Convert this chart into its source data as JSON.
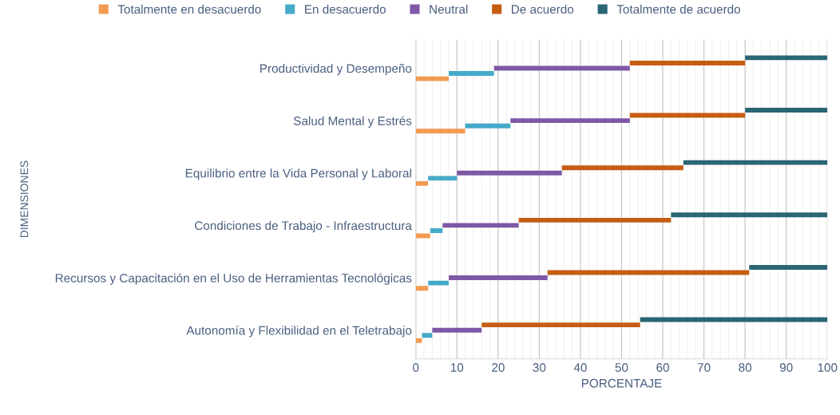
{
  "chart_data": {
    "type": "bar",
    "orientation": "horizontal",
    "stacked": true,
    "xlabel": "PORCENTAJE",
    "ylabel": "DIMENSIONES",
    "categories": [
      "Productividad y Desempeño",
      "Salud Mental y Estrés",
      "Equilibrio entre la Vida Personal y Laboral",
      "Condiciones de Trabajo - Infraestructura",
      "Recursos y Capacitación en el Uso de Herramientas Tecnológicas",
      "Autonomía y Flexibilidad en el Teletrabajo"
    ],
    "series": [
      {
        "name": "Totalmente en desacuerdo",
        "color": "#f29b52",
        "values": [
          8,
          12,
          3,
          3.5,
          3,
          1.5
        ]
      },
      {
        "name": "En desacuerdo",
        "color": "#45aac8",
        "values": [
          11,
          11,
          7,
          3,
          5,
          2.5
        ]
      },
      {
        "name": "Neutral",
        "color": "#7e58a6",
        "values": [
          33,
          29,
          25.5,
          18.5,
          24,
          12
        ]
      },
      {
        "name": "De acuerdo",
        "color": "#c55d13",
        "values": [
          28,
          28,
          29.5,
          37,
          49,
          38.5
        ]
      },
      {
        "name": "Totalmente de acuerdo",
        "color": "#2a6574",
        "values": [
          20,
          20,
          35,
          38,
          19,
          45.5
        ]
      }
    ],
    "xlim": [
      0,
      100
    ],
    "xticks": [
      0,
      10,
      20,
      30,
      40,
      50,
      60,
      70,
      80,
      90,
      100
    ],
    "grid": "x",
    "legend": "top"
  }
}
